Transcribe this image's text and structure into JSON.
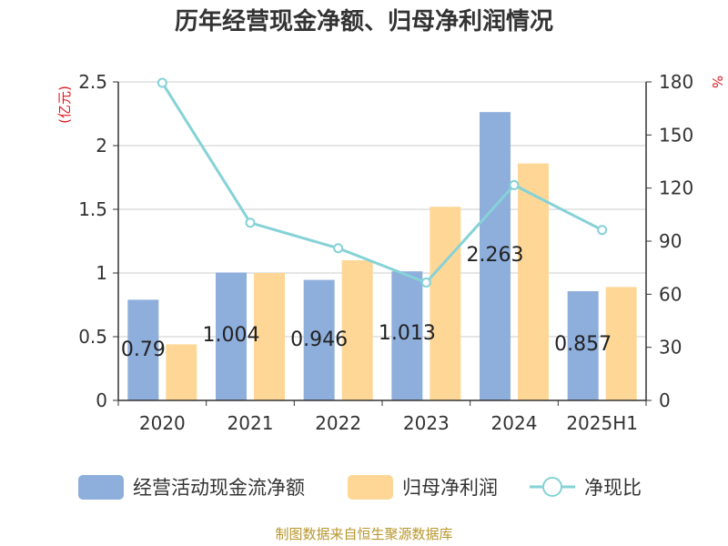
{
  "chart_data": {
    "type": "bar",
    "title": "历年经营现金净额、归母净利润情况",
    "categories": [
      "2020",
      "2021",
      "2022",
      "2023",
      "2024",
      "2025H1"
    ],
    "left_axis": {
      "unit": "(亿元)",
      "ylim": [
        0,
        2.5
      ],
      "ticks": [
        "0",
        "0.5",
        "1",
        "1.5",
        "2",
        "2.5"
      ],
      "tick_values": [
        0,
        0.5,
        1,
        1.5,
        2,
        2.5
      ]
    },
    "right_axis": {
      "unit": "%",
      "ylim": [
        0,
        180
      ],
      "ticks": [
        "0",
        "30",
        "60",
        "90",
        "120",
        "150",
        "180"
      ],
      "tick_values": [
        0,
        30,
        60,
        90,
        120,
        150,
        180
      ]
    },
    "series": [
      {
        "name": "经营活动现金流净额",
        "type": "bar",
        "axis": "left",
        "color": "#8eaedc",
        "values": [
          0.79,
          1.004,
          0.946,
          1.013,
          2.263,
          0.857
        ],
        "labels": [
          "0.79",
          "1.004",
          "0.946",
          "1.013",
          "2.263",
          "0.857"
        ]
      },
      {
        "name": "归母净利润",
        "type": "bar",
        "axis": "left",
        "color": "#fed797",
        "values": [
          0.44,
          1.0,
          1.1,
          1.52,
          1.86,
          0.89
        ]
      },
      {
        "name": "净现比",
        "type": "line",
        "axis": "right",
        "color": "#85d2d7",
        "values": [
          179.5,
          100.4,
          86.0,
          66.6,
          121.7,
          96.3
        ]
      }
    ],
    "grid": true,
    "legend_position": "bottom"
  },
  "source": "制图数据来自恒生聚源数据库"
}
